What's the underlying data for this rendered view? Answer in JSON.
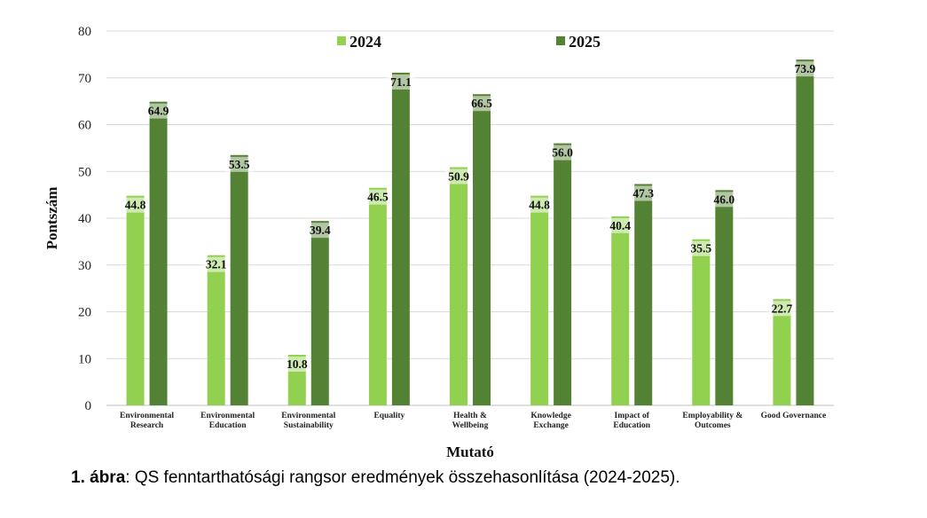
{
  "chart_data": {
    "type": "bar",
    "categories": [
      [
        "Environmental",
        "Research"
      ],
      [
        "Environmental",
        "Education"
      ],
      [
        "Environmental",
        "Sustainability"
      ],
      [
        "Equality"
      ],
      [
        "Health &",
        "Wellbeing"
      ],
      [
        "Knowledge",
        "Exchange"
      ],
      [
        "Impact of",
        "Education"
      ],
      [
        "Employability &",
        "Outcomes"
      ],
      [
        "Good Governance"
      ]
    ],
    "series": [
      {
        "name": "2024",
        "color": "#92d050",
        "values": [
          44.8,
          32.1,
          10.8,
          46.5,
          50.9,
          44.8,
          40.4,
          35.5,
          22.7
        ]
      },
      {
        "name": "2025",
        "color": "#548235",
        "values": [
          64.9,
          53.5,
          39.4,
          71.1,
          66.5,
          56.0,
          47.3,
          46.0,
          73.9
        ]
      }
    ],
    "title": "",
    "xlabel": "Mutató",
    "ylabel": "Pontszám",
    "ylim": [
      0,
      80
    ],
    "yticks": [
      0,
      10,
      20,
      30,
      40,
      50,
      60,
      70,
      80
    ],
    "grid": true,
    "legend": "top-center"
  },
  "caption": {
    "prefix": "1. ábra",
    "text": ": QS fenntarthatósági rangsor eredmények összehasonlítása (2024-2025)."
  }
}
